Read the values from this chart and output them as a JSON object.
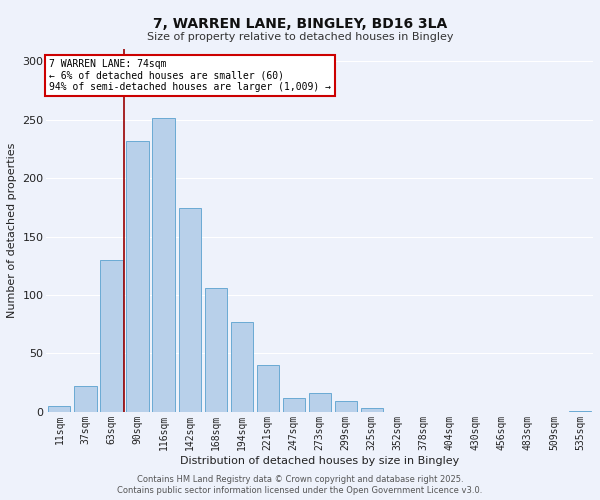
{
  "title": "7, WARREN LANE, BINGLEY, BD16 3LA",
  "subtitle": "Size of property relative to detached houses in Bingley",
  "xlabel": "Distribution of detached houses by size in Bingley",
  "ylabel": "Number of detached properties",
  "bar_labels": [
    "11sqm",
    "37sqm",
    "63sqm",
    "90sqm",
    "116sqm",
    "142sqm",
    "168sqm",
    "194sqm",
    "221sqm",
    "247sqm",
    "273sqm",
    "299sqm",
    "325sqm",
    "352sqm",
    "378sqm",
    "404sqm",
    "430sqm",
    "456sqm",
    "483sqm",
    "509sqm",
    "535sqm"
  ],
  "bar_values": [
    5,
    22,
    130,
    232,
    251,
    174,
    106,
    77,
    40,
    12,
    16,
    9,
    3,
    0,
    0,
    0,
    0,
    0,
    0,
    0,
    1
  ],
  "bar_color": "#b8d0ea",
  "bar_edge_color": "#6aaad4",
  "bg_color": "#eef2fb",
  "grid_color": "#ffffff",
  "vline_color": "#990000",
  "vline_x": 2.5,
  "annotation_title": "7 WARREN LANE: 74sqm",
  "annotation_line2": "← 6% of detached houses are smaller (60)",
  "annotation_line3": "94% of semi-detached houses are larger (1,009) →",
  "annotation_box_facecolor": "#ffffff",
  "annotation_box_edgecolor": "#cc0000",
  "ylim": [
    0,
    310
  ],
  "yticks": [
    0,
    50,
    100,
    150,
    200,
    250,
    300
  ],
  "footer1": "Contains HM Land Registry data © Crown copyright and database right 2025.",
  "footer2": "Contains public sector information licensed under the Open Government Licence v3.0.",
  "title_fontsize": 10,
  "subtitle_fontsize": 8,
  "axis_label_fontsize": 8,
  "tick_fontsize": 7,
  "annotation_fontsize": 7,
  "footer_fontsize": 6
}
